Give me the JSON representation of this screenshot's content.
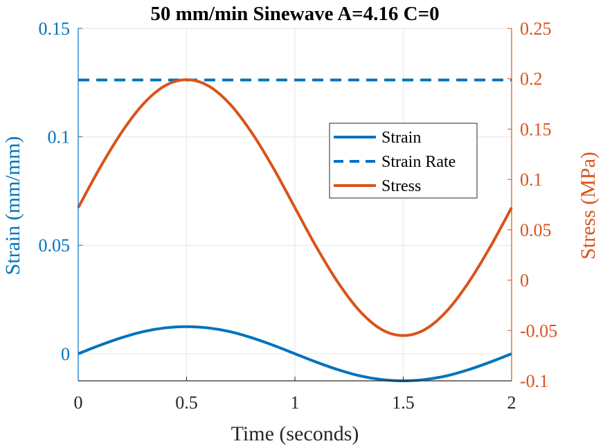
{
  "chart_data": {
    "type": "line",
    "title": "50 mm/min Sinewave A=4.16 C=0",
    "xlabel": "Time (seconds)",
    "ylabel_left": "Strain (mm/mm)",
    "ylabel_right": "Stress (MPa)",
    "xlim": [
      0,
      2
    ],
    "ylim_left": [
      -0.0125,
      0.15
    ],
    "ylim_right": [
      -0.1,
      0.25
    ],
    "x_ticks": [
      "0",
      "0.5",
      "1",
      "1.5",
      "2"
    ],
    "y_left_ticks": [
      "0",
      "0.05",
      "0.1",
      "0.15"
    ],
    "y_right_ticks": [
      "-0.1",
      "-0.05",
      "0",
      "0.05",
      "0.1",
      "0.15",
      "0.2",
      "0.25"
    ],
    "grid": true,
    "legend_position": "center-right",
    "series": [
      {
        "name": "Strain",
        "axis": "left",
        "color": "#0072BD",
        "style": "solid",
        "x": [
          0,
          0.1,
          0.2,
          0.3,
          0.4,
          0.5,
          0.6,
          0.7,
          0.8,
          0.9,
          1.0,
          1.1,
          1.2,
          1.3,
          1.4,
          1.5,
          1.6,
          1.7,
          1.8,
          1.9,
          2.0
        ],
        "y": [
          0,
          0.0039,
          0.0074,
          0.0102,
          0.0119,
          0.0125,
          0.0119,
          0.0102,
          0.0074,
          0.0039,
          0,
          -0.0039,
          -0.0074,
          -0.0102,
          -0.0119,
          -0.0125,
          -0.0119,
          -0.0102,
          -0.0074,
          -0.0039,
          0
        ]
      },
      {
        "name": "Strain Rate",
        "axis": "left",
        "color": "#0072BD",
        "style": "dashed",
        "x": [
          0,
          2
        ],
        "y": [
          0.1262,
          0.1262
        ]
      },
      {
        "name": "Stress",
        "axis": "right",
        "color": "#D95319",
        "style": "solid",
        "x": [
          0,
          0.1,
          0.2,
          0.3,
          0.4,
          0.5,
          0.6,
          0.7,
          0.8,
          0.9,
          1.0,
          1.1,
          1.2,
          1.3,
          1.4,
          1.5,
          1.6,
          1.7,
          1.8,
          1.9,
          2.0
        ],
        "y": [
          0.072,
          0.1115,
          0.1467,
          0.1749,
          0.193,
          0.199,
          0.193,
          0.1749,
          0.1467,
          0.1115,
          0.072,
          0.0325,
          -0.0027,
          -0.0309,
          -0.049,
          -0.055,
          -0.049,
          -0.0309,
          -0.0027,
          0.0325,
          0.072
        ]
      }
    ]
  }
}
